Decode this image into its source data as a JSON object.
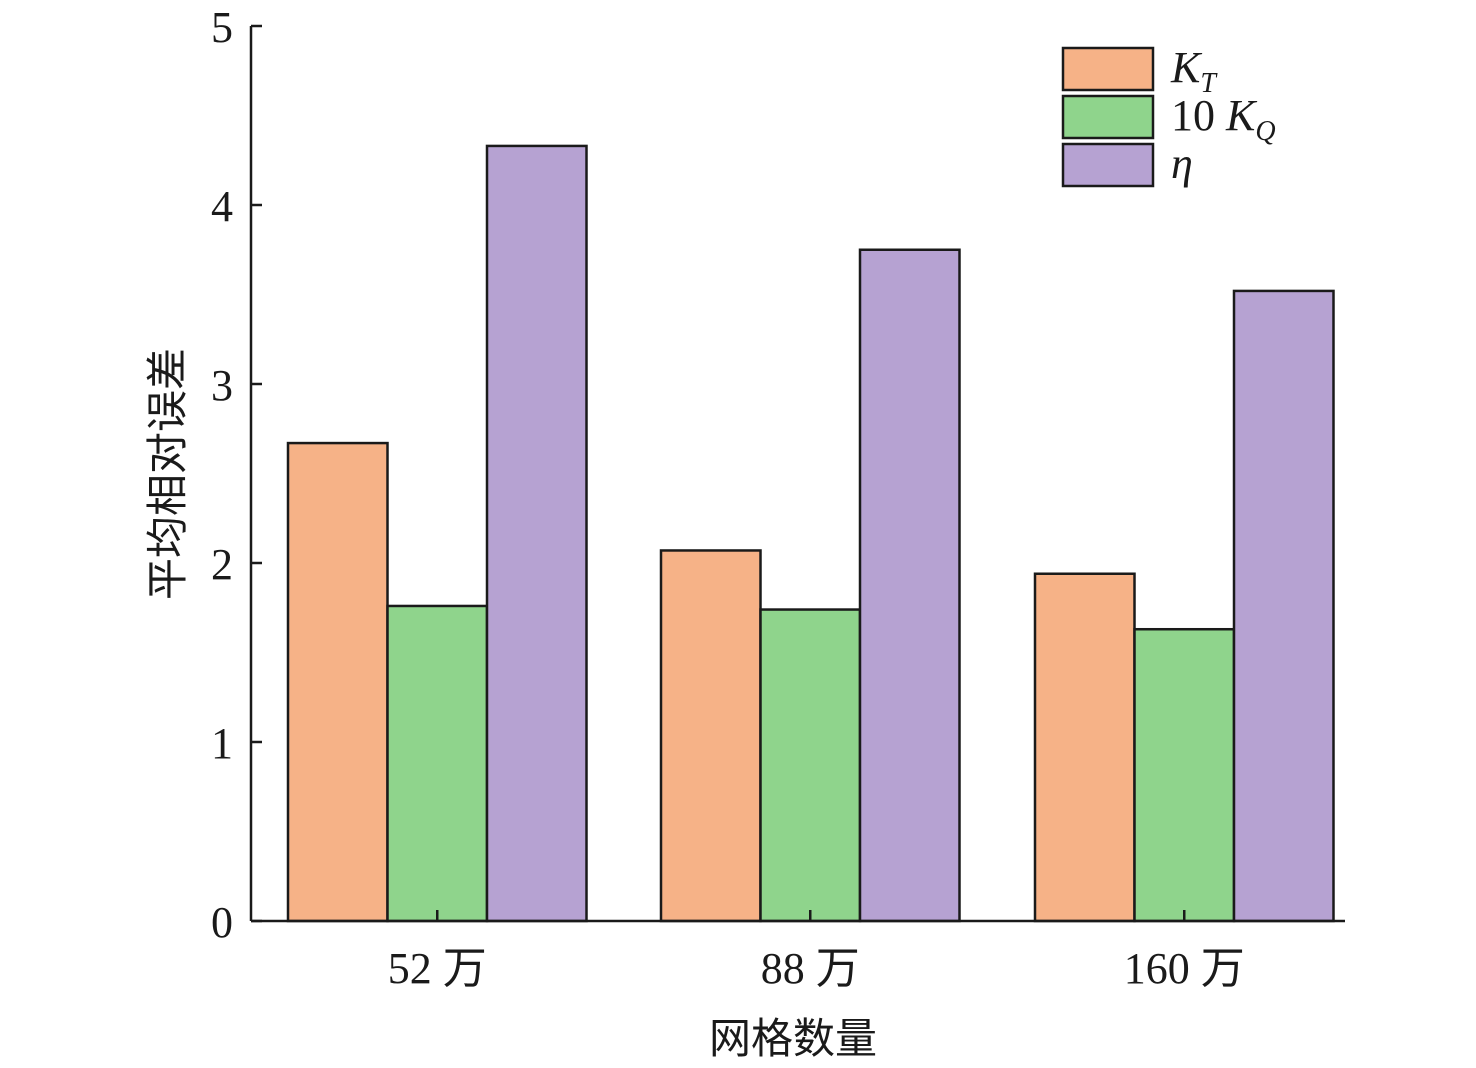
{
  "chart_data": {
    "type": "bar",
    "categories": [
      "52 万",
      "88 万",
      "160 万"
    ],
    "series": [
      {
        "name": "K_T",
        "color": "#F6B287",
        "values": [
          2.67,
          2.07,
          1.94
        ]
      },
      {
        "name": "10 K_Q",
        "color": "#8FD48C",
        "values": [
          1.76,
          1.74,
          1.63
        ]
      },
      {
        "name": "η",
        "color": "#B6A2D2",
        "values": [
          4.33,
          3.75,
          3.52
        ]
      }
    ],
    "legend": [
      {
        "main": "K",
        "sub": "T",
        "italic": true
      },
      {
        "prefix": "10 ",
        "main": "K",
        "sub": "Q",
        "italic": true
      },
      {
        "main": "η",
        "sub": "",
        "italic": true
      }
    ],
    "xlabel": "网格数量",
    "ylabel": "平均相对误差",
    "ylim": [
      0,
      5
    ],
    "yticks": [
      0,
      1,
      2,
      3,
      4,
      5
    ],
    "grid": false,
    "legend_position": "top-right"
  }
}
